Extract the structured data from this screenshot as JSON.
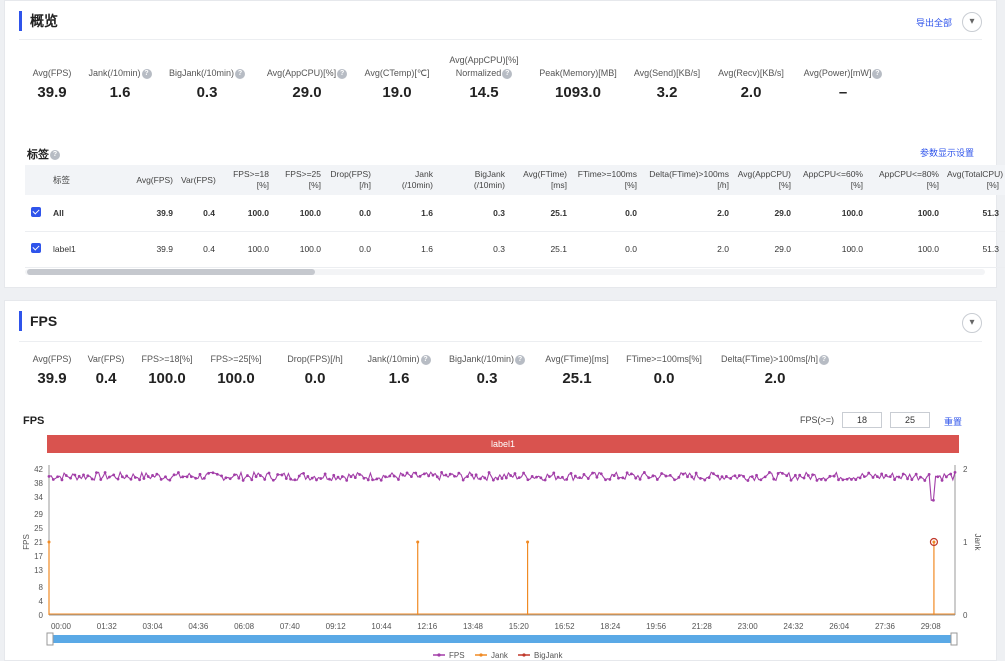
{
  "overview": {
    "title": "概览",
    "export_label": "导出全部",
    "metrics": [
      {
        "label": "Avg(FPS)",
        "value": "39.9",
        "help": false
      },
      {
        "label": "Jank(/10min)",
        "value": "1.6",
        "help": true
      },
      {
        "label": "BigJank(/10min)",
        "value": "0.3",
        "help": true
      },
      {
        "label": "Avg(AppCPU)[%]",
        "value": "29.0",
        "help": true
      },
      {
        "label": "Avg(CTemp)[℃]",
        "value": "19.0",
        "help": false
      },
      {
        "label": "Avg(AppCPU)[%]",
        "label2": "Normalized",
        "value": "14.5",
        "help": true
      },
      {
        "label": "Peak(Memory)[MB]",
        "value": "1093.0",
        "help": false
      },
      {
        "label": "Avg(Send)[KB/s]",
        "value": "3.2",
        "help": false
      },
      {
        "label": "Avg(Recv)[KB/s]",
        "value": "2.0",
        "help": false
      },
      {
        "label": "Avg(Power)[mW]",
        "value": "–",
        "help": true
      }
    ],
    "tags_title": "标签",
    "param_settings_label": "参数显示设置",
    "table": {
      "headers": [
        {
          "l1": "",
          "l2": ""
        },
        {
          "l1": "标签",
          "l2": ""
        },
        {
          "l1": "Avg(FPS)",
          "l2": ""
        },
        {
          "l1": "Var(FPS)",
          "l2": ""
        },
        {
          "l1": "FPS>=18",
          "l2": "[%]"
        },
        {
          "l1": "FPS>=25",
          "l2": "[%]"
        },
        {
          "l1": "Drop(FPS)",
          "l2": "[/h]"
        },
        {
          "l1": "Jank",
          "l2": "(/10min)"
        },
        {
          "l1": "BigJank",
          "l2": "(/10min)"
        },
        {
          "l1": "Avg(FTime)",
          "l2": "[ms]"
        },
        {
          "l1": "FTime>=100ms",
          "l2": "[%]"
        },
        {
          "l1": "Delta(FTime)>100ms",
          "l2": "[/h]"
        },
        {
          "l1": "Avg(AppCPU)",
          "l2": "[%]"
        },
        {
          "l1": "AppCPU<=60%",
          "l2": "[%]"
        },
        {
          "l1": "AppCPU<=80%",
          "l2": "[%]"
        },
        {
          "l1": "Avg(TotalCPU)",
          "l2": "[%]"
        }
      ],
      "rows": [
        {
          "label": "All",
          "cells": [
            "39.9",
            "0.4",
            "100.0",
            "100.0",
            "0.0",
            "1.6",
            "0.3",
            "25.1",
            "0.0",
            "2.0",
            "29.0",
            "100.0",
            "100.0",
            "51.3"
          ]
        },
        {
          "label": "label1",
          "cells": [
            "39.9",
            "0.4",
            "100.0",
            "100.0",
            "0.0",
            "1.6",
            "0.3",
            "25.1",
            "0.0",
            "2.0",
            "29.0",
            "100.0",
            "100.0",
            "51.3"
          ]
        }
      ]
    }
  },
  "fps_section": {
    "title": "FPS",
    "metrics": [
      {
        "label": "Avg(FPS)",
        "value": "39.9",
        "help": false
      },
      {
        "label": "Var(FPS)",
        "value": "0.4",
        "help": false
      },
      {
        "label": "FPS>=18[%]",
        "value": "100.0",
        "help": false
      },
      {
        "label": "FPS>=25[%]",
        "value": "100.0",
        "help": false
      },
      {
        "label": "Drop(FPS)[/h]",
        "value": "0.0",
        "help": false
      },
      {
        "label": "Jank(/10min)",
        "value": "1.6",
        "help": true
      },
      {
        "label": "BigJank(/10min)",
        "value": "0.3",
        "help": true
      },
      {
        "label": "Avg(FTime)[ms]",
        "value": "25.1",
        "help": false
      },
      {
        "label": "FTime>=100ms[%]",
        "value": "0.0",
        "help": false
      },
      {
        "label": "Delta(FTime)>100ms[/h]",
        "value": "2.0",
        "help": true
      }
    ],
    "chart_title": "FPS",
    "threshold_label": "FPS(>=)",
    "threshold_values": [
      "18",
      "25"
    ],
    "reset_label": "重置",
    "label_bar": "label1"
  },
  "colors": {
    "accent": "#2f54eb",
    "fps": "#a23ea8",
    "jank": "#f08a24",
    "bigjank": "#c0392b",
    "label": "#d9534f",
    "slider": "#5aa9e6"
  },
  "chart_data": {
    "type": "line",
    "title": "FPS",
    "xlabel": "",
    "ylabel": "FPS",
    "y2label": "Jank",
    "ylim": [
      0,
      42
    ],
    "y_ticks": [
      0,
      4,
      8,
      13,
      17,
      21,
      25,
      29,
      34,
      38,
      42
    ],
    "y2lim": [
      0,
      2
    ],
    "y2_ticks": [
      0,
      1,
      2
    ],
    "x_ticks": [
      "00:00",
      "01:32",
      "03:04",
      "04:36",
      "06:08",
      "07:40",
      "09:12",
      "10:44",
      "12:16",
      "13:48",
      "15:20",
      "16:52",
      "18:24",
      "19:56",
      "21:28",
      "23:00",
      "24:32",
      "26:04",
      "27:36",
      "29:08"
    ],
    "x_range_minutes": [
      0,
      30.1
    ],
    "series": [
      {
        "name": "FPS",
        "axis": "left",
        "baseline": 39.9,
        "range": [
          37.5,
          41.5
        ],
        "dips": [
          {
            "t": 29.35,
            "v": 33
          }
        ]
      },
      {
        "name": "Jank",
        "axis": "right",
        "spikes": [
          {
            "t": 0.0,
            "v": 1
          },
          {
            "t": 12.25,
            "v": 1
          },
          {
            "t": 15.9,
            "v": 1
          },
          {
            "t": 29.4,
            "v": 1
          }
        ]
      },
      {
        "name": "BigJank",
        "axis": "right",
        "spikes": [
          {
            "t": 29.4,
            "v": 1
          }
        ]
      }
    ],
    "legend": [
      "FPS",
      "Jank",
      "BigJank"
    ],
    "legend_position": "bottom-center"
  }
}
